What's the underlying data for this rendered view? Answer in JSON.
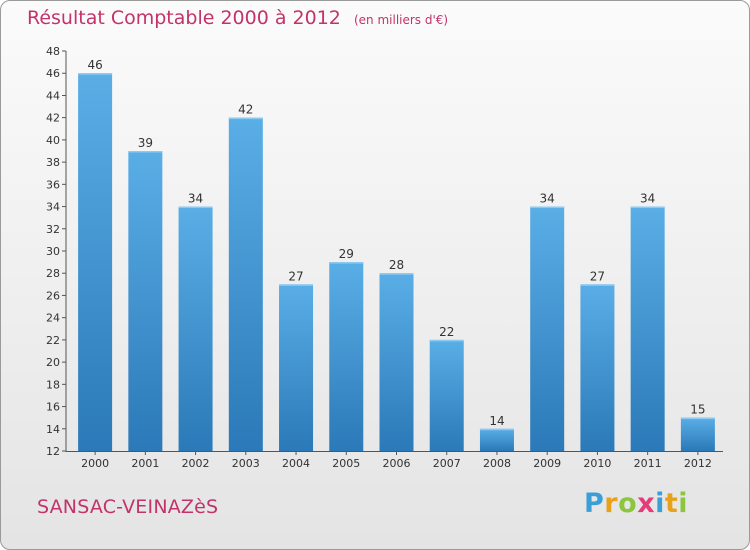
{
  "title": "Résultat Comptable 2000 à 2012",
  "subtitle": "(en milliers d'€)",
  "place": "SANSAC-VEINAZèS",
  "logo": {
    "text": "Proxiti",
    "letter_colors": [
      "#3a9fd6",
      "#e8a21a",
      "#8cc63f",
      "#e63b7a",
      "#3a9fd6",
      "#e8a21a",
      "#8cc63f"
    ]
  },
  "colors": {
    "bar_top": "#5aaee6",
    "bar_bottom": "#2b79b8",
    "title": "#c2336a"
  },
  "chart_data": {
    "type": "bar",
    "categories": [
      "2000",
      "2001",
      "2002",
      "2003",
      "2004",
      "2005",
      "2006",
      "2007",
      "2008",
      "2009",
      "2010",
      "2011",
      "2012"
    ],
    "values": [
      46,
      39,
      34,
      42,
      27,
      29,
      28,
      22,
      14,
      34,
      27,
      34,
      15
    ],
    "title": "Résultat Comptable 2000 à 2012",
    "xlabel": "",
    "ylabel": "",
    "ylim": [
      12,
      48
    ],
    "yticks": [
      12,
      14,
      16,
      18,
      20,
      22,
      24,
      26,
      28,
      30,
      32,
      34,
      36,
      38,
      40,
      42,
      44,
      46,
      48
    ],
    "grid": false,
    "legend": "none"
  }
}
